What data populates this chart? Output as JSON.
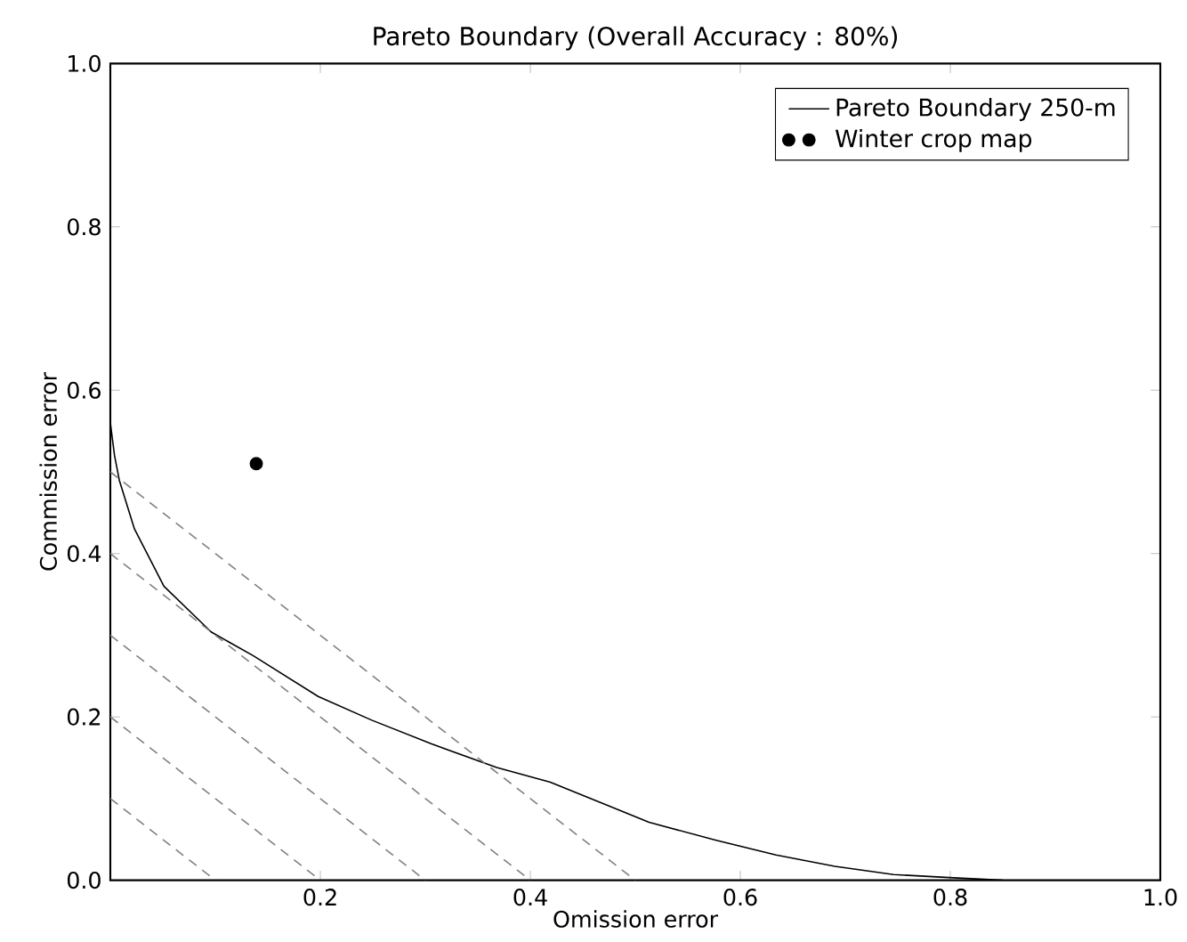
{
  "chart_data": {
    "type": "line",
    "title": "Pareto Boundary (Overall Accuracy : 80%)",
    "xlabel": "Omission error",
    "ylabel": "Commission error",
    "xlim": [
      0,
      1
    ],
    "ylim": [
      0,
      1
    ],
    "xticks": [
      {
        "value": 0.2,
        "label": "0.2"
      },
      {
        "value": 0.4,
        "label": "0.4"
      },
      {
        "value": 0.6,
        "label": "0.6"
      },
      {
        "value": 0.8,
        "label": "0.8"
      },
      {
        "value": 1,
        "label": "1.0"
      }
    ],
    "yticks": [
      {
        "value": 0,
        "label": "0.0"
      },
      {
        "value": 0.2,
        "label": "0.2"
      },
      {
        "value": 0.4,
        "label": "0.4"
      },
      {
        "value": 0.6,
        "label": "0.6"
      },
      {
        "value": 0.8,
        "label": "0.8"
      },
      {
        "value": 1,
        "label": "1.0"
      }
    ],
    "legend": "top right",
    "grid": false,
    "series": [
      {
        "name": "Pareto Boundary 250-m",
        "color": "#000000",
        "line_style": "solid",
        "x": [
          0,
          0.004,
          0.0085,
          0.023,
          0.051,
          0.096,
          0.136,
          0.198,
          0.249,
          0.306,
          0.368,
          0.419,
          0.475,
          0.513,
          0.577,
          0.634,
          0.69,
          0.746,
          0.803,
          0.85
        ],
        "values": [
          0.56,
          0.52,
          0.49,
          0.43,
          0.36,
          0.304,
          0.275,
          0.225,
          0.196,
          0.167,
          0.138,
          0.12,
          0.091,
          0.071,
          0.049,
          0.031,
          0.017,
          0.007,
          0.003,
          0
        ]
      },
      {
        "type": "scatter",
        "name": "Winter crop map",
        "color": "#000000",
        "marker": "circle",
        "x": [
          0.139
        ],
        "values": [
          0.51
        ]
      },
      {
        "color": "#808080",
        "line_style": "dashed",
        "x": [
          0,
          0.1
        ],
        "values": [
          0.1,
          0
        ]
      },
      {
        "color": "#808080",
        "line_style": "dashed",
        "x": [
          0,
          0.2
        ],
        "values": [
          0.2,
          0
        ]
      },
      {
        "color": "#808080",
        "line_style": "dashed",
        "x": [
          0,
          0.3
        ],
        "values": [
          0.3,
          0
        ]
      },
      {
        "color": "#808080",
        "line_style": "dashed",
        "x": [
          0,
          0.4
        ],
        "values": [
          0.4,
          0
        ]
      },
      {
        "color": "#808080",
        "line_style": "dashed",
        "x": [
          0,
          0.5
        ],
        "values": [
          0.5,
          0
        ]
      }
    ]
  }
}
